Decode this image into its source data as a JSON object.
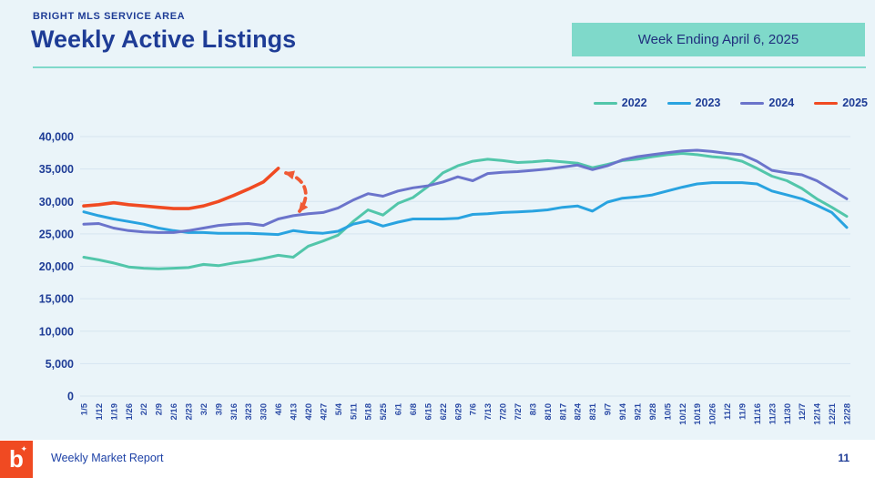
{
  "header": {
    "eyebrow": "BRIGHT MLS SERVICE AREA",
    "title": "Weekly Active Listings",
    "badge": "Week Ending April 6, 2025"
  },
  "footer": {
    "logo_letter": "b",
    "logo_sparkle": "✦",
    "report_name": "Weekly Market Report",
    "page_number": "11"
  },
  "colors": {
    "background": "#eaf4f9",
    "navy_text": "#1e3c96",
    "teal_accent": "#7fd9ca",
    "gridline": "#d6e5f0",
    "logo_orange": "#f04a22"
  },
  "chart_data": {
    "type": "line",
    "title": "Weekly Active Listings",
    "xlabel": "",
    "ylabel": "",
    "ylim": [
      0,
      40000
    ],
    "yticks": [
      0,
      5000,
      10000,
      15000,
      20000,
      25000,
      30000,
      35000,
      40000
    ],
    "grid": true,
    "legend_position": "top-right",
    "x": [
      "1/5",
      "1/12",
      "1/19",
      "1/26",
      "2/2",
      "2/9",
      "2/16",
      "2/23",
      "3/2",
      "3/9",
      "3/16",
      "3/23",
      "3/30",
      "4/6",
      "4/13",
      "4/20",
      "4/27",
      "5/4",
      "5/11",
      "5/18",
      "5/25",
      "6/1",
      "6/8",
      "6/15",
      "6/22",
      "6/29",
      "7/6",
      "7/13",
      "7/20",
      "7/27",
      "8/3",
      "8/10",
      "8/17",
      "8/24",
      "8/31",
      "9/7",
      "9/14",
      "9/21",
      "9/28",
      "10/5",
      "10/12",
      "10/19",
      "10/26",
      "11/2",
      "11/9",
      "11/16",
      "11/23",
      "11/30",
      "12/7",
      "12/14",
      "12/21",
      "12/28"
    ],
    "series": [
      {
        "name": "2022",
        "color": "#52c6aa",
        "values": [
          21400,
          21000,
          20500,
          19900,
          19700,
          19600,
          19700,
          19800,
          20300,
          20100,
          20500,
          20800,
          21200,
          21700,
          21400,
          23100,
          23900,
          24800,
          26900,
          28700,
          27900,
          29700,
          30600,
          32300,
          34400,
          35500,
          36200,
          36500,
          36300,
          36000,
          36100,
          36300,
          36100,
          35900,
          35200,
          35700,
          36300,
          36500,
          36900,
          37200,
          37400,
          37200,
          36900,
          36700,
          36200,
          35100,
          33900,
          33200,
          32000,
          30400,
          29100,
          27700
        ]
      },
      {
        "name": "2023",
        "color": "#29a3e0",
        "values": [
          28400,
          27800,
          27300,
          26900,
          26500,
          25900,
          25500,
          25200,
          25200,
          25100,
          25100,
          25100,
          25000,
          24900,
          25500,
          25200,
          25100,
          25400,
          26500,
          27000,
          26200,
          26800,
          27300,
          27300,
          27300,
          27400,
          28000,
          28100,
          28300,
          28400,
          28500,
          28700,
          29100,
          29300,
          28500,
          29900,
          30500,
          30700,
          31000,
          31600,
          32200,
          32700,
          32900,
          32900,
          32900,
          32700,
          31600,
          31000,
          30400,
          29400,
          28300,
          26000
        ]
      },
      {
        "name": "2024",
        "color": "#6b74cb",
        "values": [
          26500,
          26600,
          25900,
          25500,
          25300,
          25200,
          25200,
          25500,
          25900,
          26300,
          26500,
          26600,
          26300,
          27300,
          27800,
          28100,
          28300,
          29000,
          30200,
          31200,
          30800,
          31600,
          32100,
          32400,
          33000,
          33800,
          33200,
          34300,
          34500,
          34600,
          34800,
          35000,
          35300,
          35600,
          34900,
          35500,
          36400,
          36900,
          37200,
          37500,
          37800,
          37900,
          37700,
          37400,
          37200,
          36200,
          34800,
          34400,
          34100,
          33200,
          31800,
          30400
        ]
      },
      {
        "name": "2025",
        "color": "#f04a22",
        "values": [
          29300,
          29500,
          29800,
          29500,
          29300,
          29100,
          28900,
          28900,
          29300,
          30000,
          30900,
          31900,
          33000,
          35100
        ]
      }
    ],
    "annotation": {
      "shape": "curved-double-arrow",
      "style": "dashed",
      "color": "#f05a35",
      "from_series": "2025",
      "from_week": "4/6",
      "to_series": "2024",
      "to_week": "4/13"
    }
  }
}
